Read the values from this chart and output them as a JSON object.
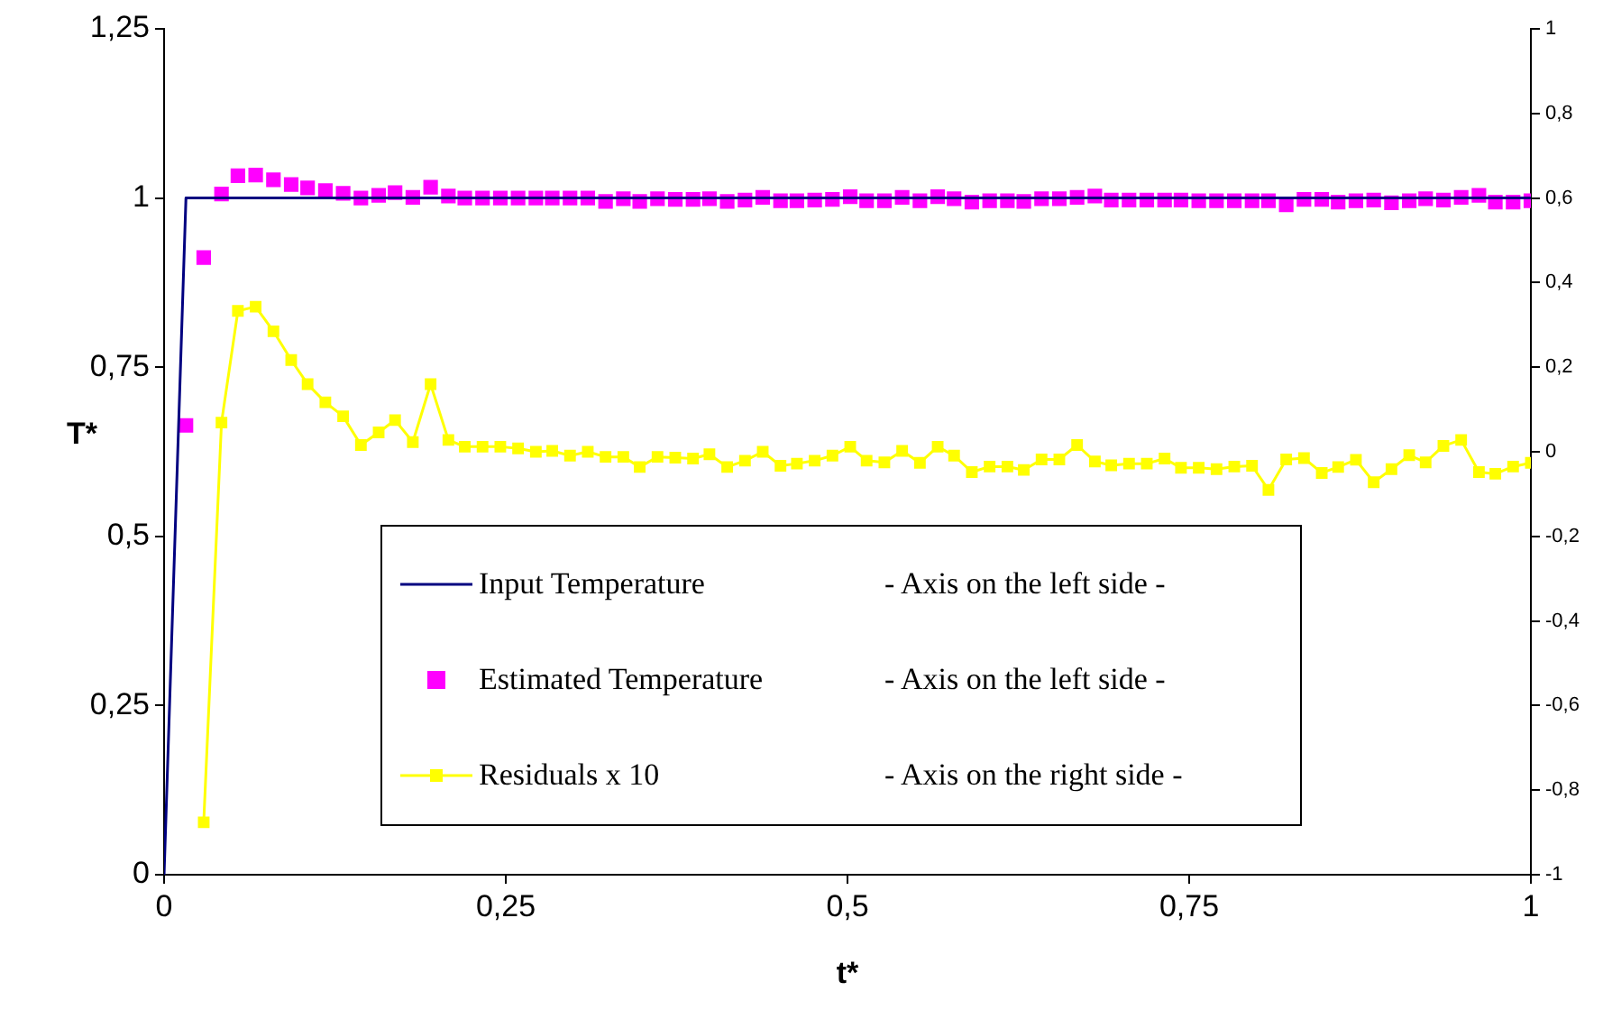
{
  "chart_data": {
    "type": "line",
    "xlabel": "t*",
    "ylabel": "T*",
    "x": [
      0.016,
      0.029,
      0.042,
      0.054,
      0.067,
      0.08,
      0.093,
      0.105,
      0.118,
      0.131,
      0.144,
      0.157,
      0.169,
      0.182,
      0.195,
      0.208,
      0.22,
      0.233,
      0.246,
      0.259,
      0.272,
      0.284,
      0.297,
      0.31,
      0.323,
      0.336,
      0.348,
      0.361,
      0.374,
      0.387,
      0.399,
      0.412,
      0.425,
      0.438,
      0.451,
      0.463,
      0.476,
      0.489,
      0.502,
      0.514,
      0.527,
      0.54,
      0.553,
      0.566,
      0.578,
      0.591,
      0.604,
      0.617,
      0.629,
      0.642,
      0.655,
      0.668,
      0.681,
      0.693,
      0.706,
      0.719,
      0.732,
      0.744,
      0.757,
      0.77,
      0.783,
      0.796,
      0.808,
      0.821,
      0.834,
      0.847,
      0.859,
      0.872,
      0.885,
      0.898,
      0.911,
      0.923,
      0.936,
      0.949,
      0.962,
      0.974,
      0.987,
      1.0
    ],
    "series": [
      {
        "name": "Input Temperature",
        "type": "line",
        "marker": "none",
        "color": "#000080",
        "x": [
          0,
          0.016,
          1
        ],
        "values": [
          0,
          1,
          1
        ]
      },
      {
        "name": "Estimated Temperature",
        "type": "scatter",
        "marker": "square",
        "color": "#ff00ff",
        "values": [
          0.664,
          0.912,
          1.006,
          1.033,
          1.034,
          1.027,
          1.02,
          1.015,
          1.011,
          1.007,
          1.0,
          1.004,
          1.008,
          1.001,
          1.016,
          1.003,
          1.0,
          1.0,
          1.0,
          1.0,
          1.0,
          1.0,
          1.0,
          1.0,
          0.995,
          0.999,
          0.995,
          0.999,
          0.998,
          0.998,
          0.999,
          0.995,
          0.997,
          1.001,
          0.996,
          0.996,
          0.997,
          0.998,
          1.002,
          0.996,
          0.996,
          1.001,
          0.996,
          1.002,
          0.999,
          0.994,
          0.996,
          0.996,
          0.995,
          0.999,
          0.999,
          1.001,
          1.003,
          0.997,
          0.997,
          0.997,
          0.997,
          0.997,
          0.996,
          0.996,
          0.996,
          0.996,
          0.996,
          0.99,
          0.998,
          0.998,
          0.994,
          0.996,
          0.997,
          0.993,
          0.996,
          0.999,
          0.997,
          1.001,
          1.004,
          0.994,
          0.994,
          0.996
        ]
      },
      {
        "name": "Residuals x 10",
        "type": "line",
        "marker": "square",
        "axis": "y2",
        "color": "#ffff00",
        "values": [
          null,
          -0.876,
          0.069,
          0.333,
          0.343,
          0.285,
          0.217,
          0.16,
          0.117,
          0.084,
          0.016,
          0.046,
          0.075,
          0.023,
          0.16,
          0.028,
          0.012,
          0.012,
          0.012,
          0.008,
          0.0,
          0.002,
          -0.009,
          0.0,
          -0.012,
          -0.012,
          -0.036,
          -0.012,
          -0.014,
          -0.016,
          -0.006,
          -0.036,
          -0.021,
          0.0,
          -0.033,
          -0.028,
          -0.021,
          -0.009,
          0.012,
          -0.021,
          -0.025,
          0.002,
          -0.026,
          0.012,
          -0.009,
          -0.048,
          -0.035,
          -0.035,
          -0.043,
          -0.018,
          -0.018,
          0.016,
          -0.023,
          -0.032,
          -0.028,
          -0.028,
          -0.016,
          -0.038,
          -0.038,
          -0.041,
          -0.035,
          -0.033,
          -0.09,
          -0.018,
          -0.015,
          -0.05,
          -0.036,
          -0.019,
          -0.072,
          -0.041,
          -0.008,
          -0.025,
          0.014,
          0.028,
          -0.048,
          -0.052,
          -0.035,
          -0.026
        ]
      }
    ],
    "annotations": [
      "- Axis on the left side -",
      "- Axis on the left side -",
      "- Axis on the right side -"
    ],
    "xlim": [
      0,
      1
    ],
    "xticks": [
      0,
      {
        "value": 0.25,
        "label": "0,25"
      },
      {
        "value": 0.5,
        "label": "0,5"
      },
      {
        "value": 0.75,
        "label": "0,75"
      },
      1
    ],
    "ylim": [
      0,
      1.25
    ],
    "yticks": [
      0,
      {
        "value": 0.25,
        "label": "0,25"
      },
      {
        "value": 0.5,
        "label": "0,5"
      },
      {
        "value": 0.75,
        "label": "0,75"
      },
      1,
      {
        "value": 1.25,
        "label": "1,25"
      }
    ],
    "y2lim": [
      -1,
      1
    ],
    "y2ticks": [
      -1,
      {
        "value": -0.8,
        "label": "-0,8"
      },
      {
        "value": -0.6,
        "label": "-0,6"
      },
      {
        "value": -0.4,
        "label": "-0,4"
      },
      {
        "value": -0.2,
        "label": "-0,2"
      },
      0,
      {
        "value": 0.2,
        "label": "0,2"
      },
      {
        "value": 0.4,
        "label": "0,4"
      },
      {
        "value": 0.6,
        "label": "0,6"
      },
      {
        "value": 0.8,
        "label": "0,8"
      },
      1
    ],
    "grid": false,
    "legend": "bottom"
  }
}
